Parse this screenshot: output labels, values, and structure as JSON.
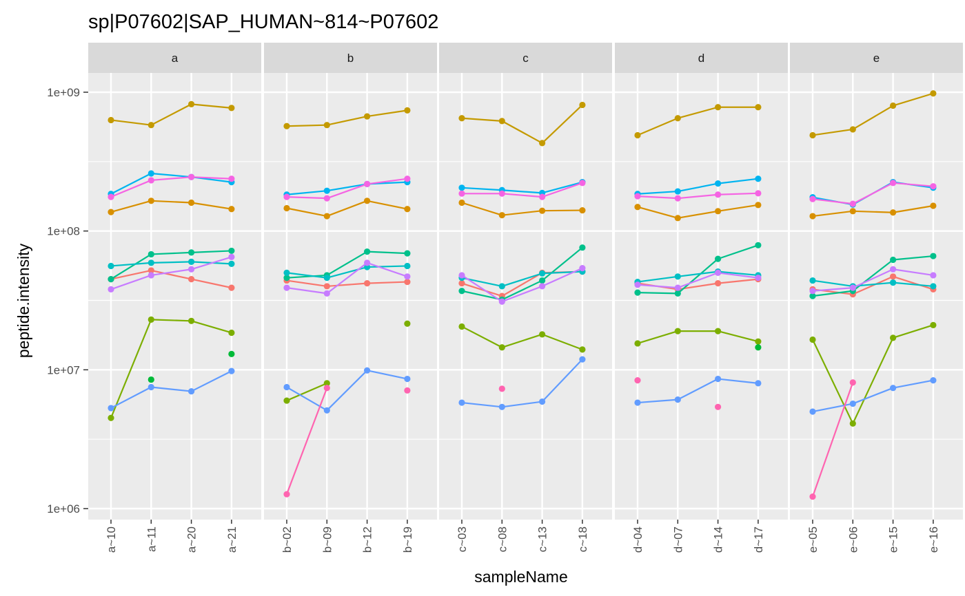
{
  "chart_data": {
    "type": "line",
    "title": "sp|P07602|SAP_HUMAN~814~P07602",
    "xlabel": "sampleName",
    "ylabel": "peptide.intensity",
    "y_scale": "log10",
    "ylim": [
      1000000,
      1900000000
    ],
    "y_ticks": [
      1000000,
      10000000,
      100000000,
      1000000000
    ],
    "y_tick_labels": [
      "1e+06",
      "1e+07",
      "1e+08",
      "1e+09"
    ],
    "legend": "none",
    "grid": true,
    "panel_background": "#ebebeb",
    "strip_background": "#d9d9d9",
    "facets": [
      {
        "label": "a",
        "samples": [
          "a~10",
          "a~11",
          "a~20",
          "a~21"
        ]
      },
      {
        "label": "b",
        "samples": [
          "b~02",
          "b~09",
          "b~12",
          "b~19"
        ]
      },
      {
        "label": "c",
        "samples": [
          "c~03",
          "c~08",
          "c~13",
          "c~18"
        ]
      },
      {
        "label": "d",
        "samples": [
          "d~04",
          "d~07",
          "d~14",
          "d~17"
        ]
      },
      {
        "label": "e",
        "samples": [
          "e~05",
          "e~06",
          "e~15",
          "e~16"
        ]
      }
    ],
    "series": [
      {
        "color": "#F8766D",
        "values": [
          [
            45000000,
            52000000,
            45000000,
            39000000
          ],
          [
            44000000,
            40000000,
            42000000,
            43000000
          ],
          [
            42000000,
            34000000,
            50000000,
            51000000
          ],
          [
            42000000,
            38000000,
            42000000,
            45000000
          ],
          [
            38000000,
            35000000,
            47000000,
            38000000
          ]
        ]
      },
      {
        "color": "#C49A00",
        "values": [
          [
            630000000,
            580000000,
            820000000,
            770000000
          ],
          [
            570000000,
            580000000,
            670000000,
            740000000
          ],
          [
            650000000,
            620000000,
            430000000,
            810000000
          ],
          [
            490000000,
            650000000,
            780000000,
            780000000
          ],
          [
            490000000,
            540000000,
            800000000,
            980000000
          ]
        ]
      },
      {
        "color": "#D89000",
        "values": [
          [
            137000000,
            165000000,
            160000000,
            144000000
          ],
          [
            146000000,
            128000000,
            165000000,
            144000000
          ],
          [
            160000000,
            130000000,
            140000000,
            141000000
          ],
          [
            149000000,
            124000000,
            139000000,
            154000000
          ],
          [
            128000000,
            139000000,
            136000000,
            152000000
          ]
        ]
      },
      {
        "color": "#7CAE00",
        "values": [
          [
            4500000,
            23000000,
            22500000,
            18500000
          ],
          [
            6000000,
            8000000,
            null,
            21500000
          ],
          [
            20500000,
            14500000,
            18000000,
            14000000
          ],
          [
            15500000,
            19000000,
            19000000,
            16000000
          ],
          [
            16500000,
            4100000,
            17000000,
            21000000
          ]
        ]
      },
      {
        "color": "#00BA38",
        "values": [
          [
            null,
            8500000,
            null,
            13000000
          ],
          [
            null,
            null,
            null,
            null
          ],
          [
            null,
            null,
            null,
            null
          ],
          [
            null,
            null,
            null,
            14500000
          ],
          [
            null,
            null,
            null,
            null
          ]
        ]
      },
      {
        "color": "#00C08B",
        "values": [
          [
            45000000,
            68000000,
            70000000,
            72000000
          ],
          [
            46000000,
            48000000,
            71000000,
            69000000
          ],
          [
            37000000,
            32000000,
            44000000,
            76000000
          ],
          [
            36000000,
            35500000,
            63000000,
            79000000
          ],
          [
            34000000,
            37000000,
            62000000,
            66000000
          ]
        ]
      },
      {
        "color": "#00BFC4",
        "values": [
          [
            56000000,
            59000000,
            60000000,
            58000000
          ],
          [
            50000000,
            46000000,
            55000000,
            56000000
          ],
          [
            46000000,
            40000000,
            49500000,
            51000000
          ],
          [
            43000000,
            47000000,
            51000000,
            48000000
          ],
          [
            44000000,
            40000000,
            42500000,
            40000000
          ]
        ]
      },
      {
        "color": "#00B4F0",
        "values": [
          [
            185000000,
            260000000,
            245000000,
            225000000
          ],
          [
            183000000,
            195000000,
            218000000,
            225000000
          ],
          [
            205000000,
            197000000,
            188000000,
            225000000
          ],
          [
            185000000,
            193000000,
            220000000,
            238000000
          ],
          [
            175000000,
            155000000,
            225000000,
            205000000
          ]
        ]
      },
      {
        "color": "#619CFF",
        "values": [
          [
            5300000,
            7500000,
            7000000,
            9800000
          ],
          [
            7500000,
            5100000,
            9900000,
            8600000
          ],
          [
            5800000,
            5400000,
            5900000,
            11900000
          ],
          [
            5800000,
            6100000,
            8600000,
            8000000
          ],
          [
            5000000,
            5700000,
            7400000,
            8400000
          ]
        ]
      },
      {
        "color": "#C77CFF",
        "values": [
          [
            38000000,
            48000000,
            53000000,
            65000000
          ],
          [
            39000000,
            35500000,
            59000000,
            47000000
          ],
          [
            48000000,
            31000000,
            40000000,
            54000000
          ],
          [
            41000000,
            39000000,
            50000000,
            46000000
          ],
          [
            37000000,
            39000000,
            53000000,
            48000000
          ]
        ]
      },
      {
        "color": "#F564E3",
        "values": [
          [
            176000000,
            232000000,
            245000000,
            238000000
          ],
          [
            176000000,
            172000000,
            218000000,
            238000000
          ],
          [
            186000000,
            186000000,
            176000000,
            222000000
          ],
          [
            178000000,
            172000000,
            183000000,
            187000000
          ],
          [
            170000000,
            157000000,
            222000000,
            210000000
          ]
        ]
      },
      {
        "color": "#FF64B0",
        "values": [
          [
            null,
            null,
            null,
            null
          ],
          [
            1270000,
            7400000,
            null,
            7100000
          ],
          [
            null,
            7300000,
            null,
            null
          ],
          [
            8400000,
            null,
            5400000,
            null
          ],
          [
            1220000,
            8100000,
            null,
            null
          ]
        ]
      }
    ]
  }
}
